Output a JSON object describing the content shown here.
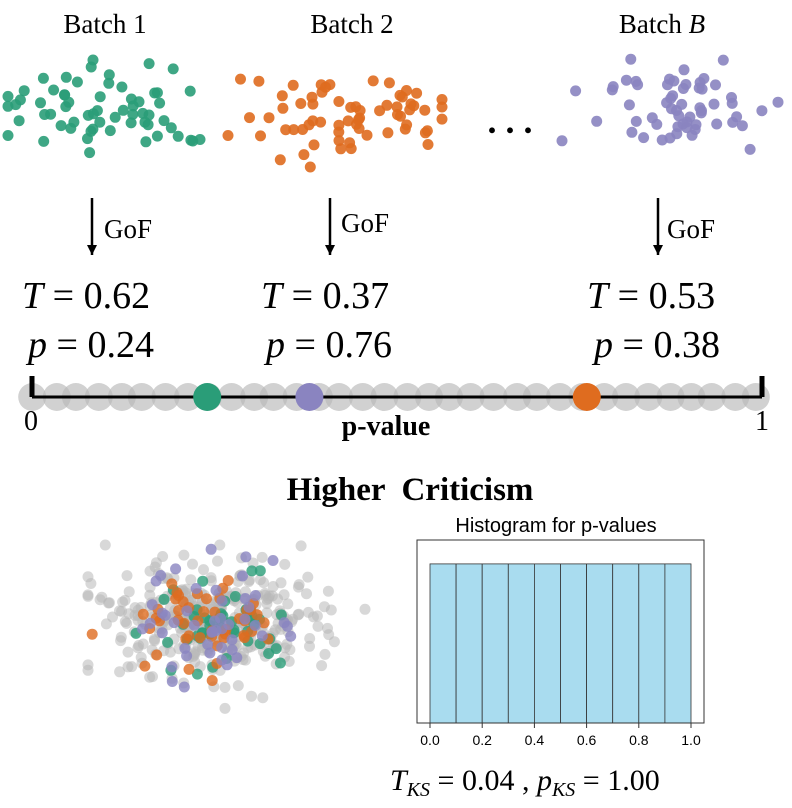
{
  "colors": {
    "green": "#2a9d78",
    "orange": "#df6c1f",
    "purple": "#8a84c0",
    "gray": "#b8b8b8",
    "hist_fill": "#a9dcef",
    "black": "#000000"
  },
  "batches": [
    {
      "label_prefix": "Batch ",
      "label_suffix": "1",
      "suffix_italic": false,
      "color_key": "green",
      "gof": "GoF",
      "T": "0.62",
      "p": "0.24"
    },
    {
      "label_prefix": "Batch ",
      "label_suffix": "2",
      "suffix_italic": false,
      "color_key": "orange",
      "gof": "GoF",
      "T": "0.37",
      "p": "0.76"
    },
    {
      "label_prefix": "Batch ",
      "label_suffix": "B",
      "suffix_italic": true,
      "color_key": "purple",
      "gof": "GoF",
      "T": "0.53",
      "p": "0.38"
    }
  ],
  "ellipsis": ". . .",
  "stat_symbols": {
    "T": "T",
    "p": "p",
    "eq": " = "
  },
  "pvalue_axis": {
    "min_label": "0",
    "max_label": "1",
    "title": "p-value",
    "highlighted": [
      {
        "value": 0.24,
        "color_key": "green"
      },
      {
        "value": 0.38,
        "color_key": "purple"
      },
      {
        "value": 0.76,
        "color_key": "orange"
      }
    ]
  },
  "hc_title": "Higher  Criticism",
  "chart_data": {
    "type": "bar",
    "title": "Histogram for p-values",
    "categories": [
      "0.0-0.1",
      "0.1-0.2",
      "0.2-0.3",
      "0.3-0.4",
      "0.4-0.5",
      "0.5-0.6",
      "0.6-0.7",
      "0.7-0.8",
      "0.8-0.9",
      "0.9-1.0"
    ],
    "values": [
      1,
      1,
      1,
      1,
      1,
      1,
      1,
      1,
      1,
      1
    ],
    "x_ticks": [
      "0.0",
      "0.2",
      "0.4",
      "0.6",
      "0.8",
      "1.0"
    ],
    "xlim": [
      -0.05,
      1.05
    ],
    "ylim": [
      0,
      1.15
    ],
    "xlabel": "",
    "ylabel": ""
  },
  "ks": {
    "T_sym": "T",
    "T_sub": "KS",
    "T_val": " = 0.04 , ",
    "p_sym": "p",
    "p_sub": "KS",
    "p_val": " = 1.00"
  }
}
